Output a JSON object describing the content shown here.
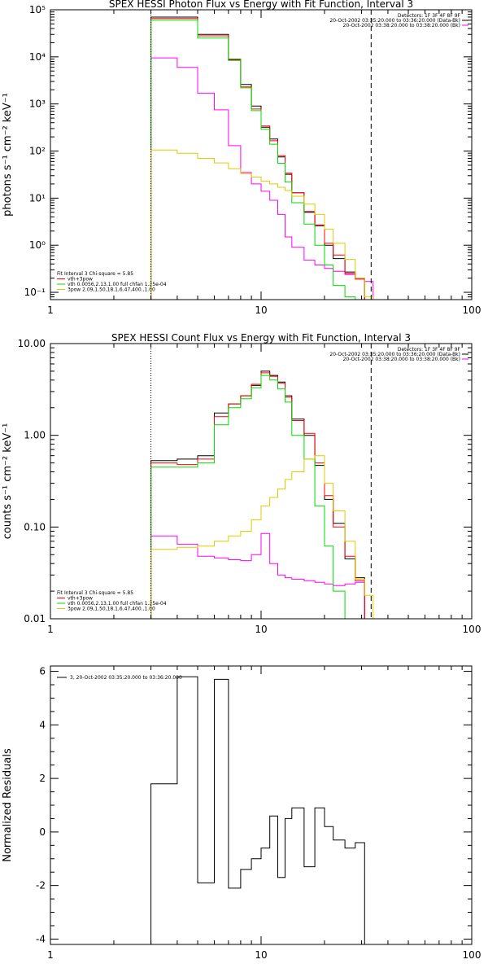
{
  "chart_data": [
    {
      "type": "line",
      "id": "photon",
      "title": "SPEX HESSI Photon Flux vs Energy with Fit Function, Interval 3",
      "xlabel": "",
      "ylabel": "photons s⁻¹ cm⁻² keV⁻¹",
      "xscale": "log",
      "yscale": "log",
      "xlim": [
        1,
        100
      ],
      "ylim": [
        0.07,
        100000
      ],
      "xticks": [
        1,
        10,
        100
      ],
      "xtick_labels": [
        "1",
        "10",
        "100"
      ],
      "yticks": [
        0.1,
        1,
        10,
        100,
        1000,
        10000,
        100000
      ],
      "ytick_labels": [
        "10⁻¹",
        "10⁰",
        "10¹",
        "10²",
        "10³",
        "10⁴",
        "10⁵"
      ],
      "header_lines": [
        "Detectors: 1F 3F 4F 8F 9F",
        "20-Oct-2002 03:35:20.000 to 03:36:20.000 (Data-Bk)",
        "20-Oct-2002 03:38:20.000 to 03:38:20.000 (Bk)"
      ],
      "legend_lines": [
        "Fit Interval 3   Chi-square = 5.85",
        "vth+3pow",
        "vth 0.0056,2.13,1.00  full chfan 1.25e-04",
        "3pow 2.09,1.50,18.1,6.47,400.,1.00"
      ],
      "vlines": [
        {
          "x": 3,
          "style": "dotted",
          "color": "#000000"
        },
        {
          "x": 33.3,
          "style": "dashed",
          "color": "#000000"
        }
      ],
      "bin_edges": [
        3,
        4,
        5,
        6,
        7,
        8,
        9,
        10,
        11,
        12,
        13,
        14,
        16,
        18,
        20,
        22,
        25,
        28,
        31,
        34,
        37
      ],
      "series": [
        {
          "name": "Data-Bk",
          "color": "#000000",
          "values": [
            70000,
            70000,
            30000,
            30000,
            8500,
            2600,
            900,
            320,
            180,
            75,
            32,
            13,
            5,
            2.6,
            1.0,
            0.52,
            0.27,
            0.2,
            null,
            null
          ]
        },
        {
          "name": "Bk",
          "color": "#ff00ff",
          "values": [
            9500,
            6000,
            1700,
            750,
            130,
            35,
            20,
            14,
            9,
            4.5,
            1.5,
            0.9,
            0.48,
            0.38,
            0.32,
            0.28,
            0.24,
            0.2,
            0.17,
            null
          ]
        },
        {
          "name": "vth+3pow",
          "color": "#ff0000",
          "values": [
            65000,
            65000,
            28000,
            28000,
            9000,
            2300,
            780,
            340,
            165,
            80,
            34,
            13,
            5.2,
            2.7,
            1.1,
            0.62,
            0.25,
            0.19,
            null,
            null
          ]
        },
        {
          "name": "vth",
          "color": "#00dd00",
          "values": [
            60000,
            60000,
            25000,
            25000,
            8800,
            2200,
            720,
            290,
            140,
            55,
            22,
            8,
            2.8,
            1.0,
            0.38,
            0.14,
            0.08,
            null,
            null,
            null
          ]
        },
        {
          "name": "3pow",
          "color": "#ddcc00",
          "values": [
            105,
            90,
            70,
            56,
            42,
            33,
            28,
            23,
            20,
            17,
            14.5,
            11,
            7.5,
            4.5,
            2.2,
            1.1,
            0.5,
            0.2,
            0.08,
            null
          ]
        }
      ]
    },
    {
      "type": "line",
      "id": "count",
      "title": "SPEX HESSI Count Flux vs Energy with Fit Function, Interval 3",
      "xlabel": "",
      "ylabel": "counts s⁻¹ cm⁻² keV⁻¹",
      "xscale": "log",
      "yscale": "log",
      "xlim": [
        1,
        100
      ],
      "ylim": [
        0.01,
        10
      ],
      "xticks": [
        1,
        10,
        100
      ],
      "xtick_labels": [
        "1",
        "10",
        "100"
      ],
      "yticks": [
        0.01,
        0.1,
        1,
        10
      ],
      "ytick_labels": [
        "0.01",
        "0.10",
        "1.00",
        "10.00"
      ],
      "header_lines": [
        "Detectors: 1F 3F 4F 8F 9F",
        "20-Oct-2002 03:35:20.000 to 03:36:20.000 (Data-Bk)",
        "20-Oct-2002 03:38:20.000 to 03:38:20.000 (Bk)"
      ],
      "legend_lines": [
        "Fit Interval 3   Chi-square = 5.85",
        "vth+3pow",
        "vth 0.0056,2.13,1.00  full chfan 1.25e-04",
        "3pow 2.09,1.50,18.1,6.47,400.,1.00"
      ],
      "vlines": [
        {
          "x": 3,
          "style": "dotted",
          "color": "#000000"
        },
        {
          "x": 33.3,
          "style": "dashed",
          "color": "#000000"
        }
      ],
      "bin_edges": [
        3,
        4,
        5,
        6,
        7,
        8,
        9,
        10,
        11,
        12,
        13,
        14,
        16,
        18,
        20,
        22,
        25,
        28,
        31,
        34,
        37
      ],
      "series": [
        {
          "name": "Data-Bk",
          "color": "#000000",
          "values": [
            0.53,
            0.55,
            0.6,
            1.75,
            2.2,
            2.7,
            3.5,
            5.0,
            4.5,
            3.8,
            2.7,
            1.5,
            1.0,
            0.47,
            0.2,
            0.11,
            0.045,
            0.028,
            null,
            null
          ]
        },
        {
          "name": "Bk",
          "color": "#ff00ff",
          "values": [
            0.08,
            0.065,
            0.048,
            0.046,
            0.044,
            0.043,
            0.05,
            0.085,
            0.04,
            0.03,
            0.028,
            0.027,
            0.026,
            0.025,
            0.024,
            0.023,
            0.024,
            0.025,
            null,
            null
          ]
        },
        {
          "name": "vth+3pow",
          "color": "#ff0000",
          "values": [
            0.5,
            0.48,
            0.55,
            1.6,
            2.2,
            2.7,
            3.6,
            4.8,
            4.4,
            3.7,
            2.6,
            1.45,
            1.05,
            0.5,
            0.22,
            0.1,
            0.048,
            0.026,
            null,
            null
          ]
        },
        {
          "name": "vth",
          "color": "#00dd00",
          "values": [
            0.45,
            0.45,
            0.5,
            1.3,
            2.0,
            2.5,
            3.3,
            4.5,
            4.0,
            3.2,
            2.3,
            1.0,
            0.55,
            0.17,
            0.062,
            0.02,
            0.01,
            null,
            null,
            null
          ]
        },
        {
          "name": "3pow",
          "color": "#ddcc00",
          "values": [
            0.057,
            0.06,
            0.062,
            0.07,
            0.08,
            0.09,
            0.12,
            0.17,
            0.21,
            0.26,
            0.33,
            0.4,
            0.55,
            0.6,
            0.3,
            0.15,
            0.07,
            0.027,
            0.018,
            null
          ]
        }
      ]
    },
    {
      "type": "line",
      "id": "residuals",
      "title": "",
      "xlabel": "",
      "ylabel": "Normalized Residuals",
      "xscale": "log",
      "yscale": "linear",
      "xlim": [
        1,
        100
      ],
      "ylim": [
        -4.2,
        6.2
      ],
      "xticks": [
        1,
        10,
        100
      ],
      "xtick_labels": [
        "1",
        "10",
        "100"
      ],
      "yticks": [
        -4,
        -2,
        0,
        2,
        4,
        6
      ],
      "ytick_labels": [
        "-4",
        "-2",
        "0",
        "2",
        "4",
        "6"
      ],
      "legend_lines": [
        "3, 20-Oct-2002 03:35:20.000 to 03:36:20.000"
      ],
      "bin_edges": [
        3,
        4,
        5,
        6,
        7,
        8,
        9,
        10,
        11,
        12,
        13,
        14,
        16,
        18,
        20,
        22,
        25,
        28,
        31,
        34
      ],
      "series": [
        {
          "name": "3, 20-Oct-2002 03:35:20.000 to 03:36:20.000",
          "color": "#000000",
          "values": [
            1.8,
            5.8,
            -1.9,
            5.7,
            -2.1,
            -1.4,
            -1.0,
            -0.6,
            0.6,
            -1.7,
            0.5,
            0.9,
            -1.3,
            0.9,
            0.2,
            -0.3,
            -0.6,
            -0.4
          ]
        }
      ]
    }
  ]
}
